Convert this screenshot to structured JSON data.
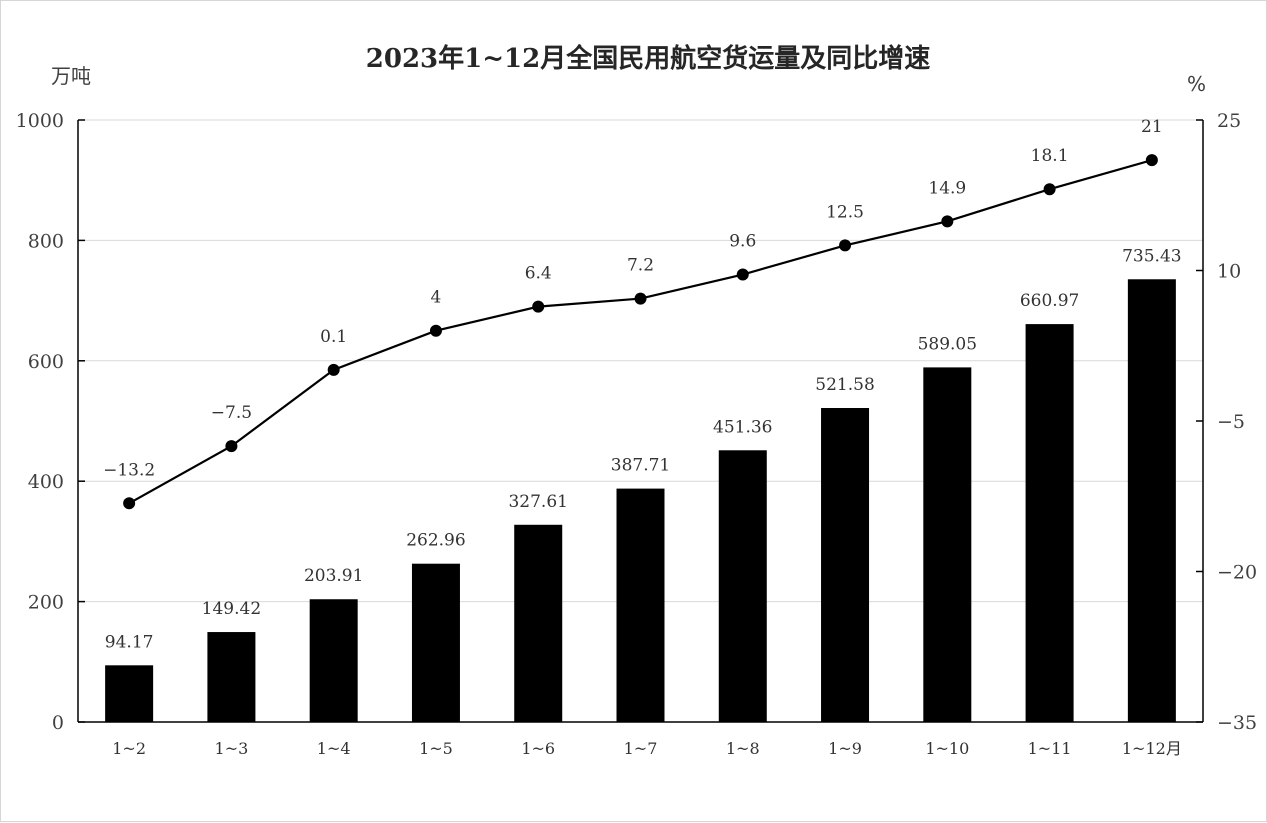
{
  "chart_data": {
    "type": "bar",
    "title": "2023年1~12月全国民用航空货运量及同比增速",
    "ylabel_left": "万吨",
    "ylabel_right": "%",
    "categories": [
      "1~2",
      "1~3",
      "1~4",
      "1~5",
      "1~6",
      "1~7",
      "1~8",
      "1~9",
      "1~10",
      "1~11",
      "1~12月"
    ],
    "ylim_left": [
      0,
      1000
    ],
    "yticks_left": [
      "0",
      "200",
      "400",
      "600",
      "800",
      "1000"
    ],
    "ylim_right": [
      -35,
      25
    ],
    "yticks_right": [
      "−35",
      "−20",
      "−5",
      "10",
      "25"
    ],
    "grid": true,
    "series": [
      {
        "type": "bar",
        "axis": "left",
        "color": "#000000",
        "values": [
          94.17,
          149.42,
          203.91,
          262.96,
          327.61,
          387.71,
          451.36,
          521.58,
          589.05,
          660.97,
          735.43
        ],
        "labels": [
          "94.17",
          "149.42",
          "203.91",
          "262.96",
          "327.61",
          "387.71",
          "451.36",
          "521.58",
          "589.05",
          "660.97",
          "735.43"
        ]
      },
      {
        "type": "line",
        "axis": "right",
        "color": "#000000",
        "values": [
          -13.2,
          -7.5,
          0.1,
          4,
          6.4,
          7.2,
          9.6,
          12.5,
          14.9,
          18.1,
          21
        ],
        "labels": [
          "−13.2",
          "−7.5",
          "0.1",
          "4",
          "6.4",
          "7.2",
          "9.6",
          "12.5",
          "14.9",
          "18.1",
          "21"
        ]
      }
    ]
  }
}
